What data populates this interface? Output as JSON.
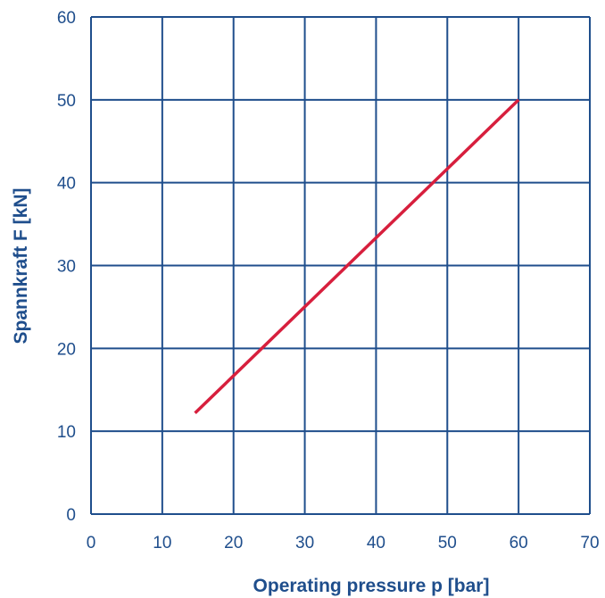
{
  "chart_data": {
    "type": "line",
    "xlabel": "Operating pressure p [bar]",
    "ylabel": "Spannkraft F [kN]",
    "xlim": [
      0,
      70
    ],
    "ylim": [
      0,
      60
    ],
    "x_ticks": [
      "0",
      "10",
      "20",
      "30",
      "40",
      "50",
      "60",
      "70"
    ],
    "y_ticks": [
      "0",
      "10",
      "20",
      "30",
      "40",
      "50",
      "60"
    ],
    "grid": true,
    "series": [
      {
        "x": [
          14.6,
          60
        ],
        "y": [
          12.2,
          50
        ]
      }
    ]
  },
  "colors": {
    "grid": "#1f4e8c",
    "text": "#1f4e8c",
    "line": "#d71f3d",
    "background": "#ffffff"
  }
}
